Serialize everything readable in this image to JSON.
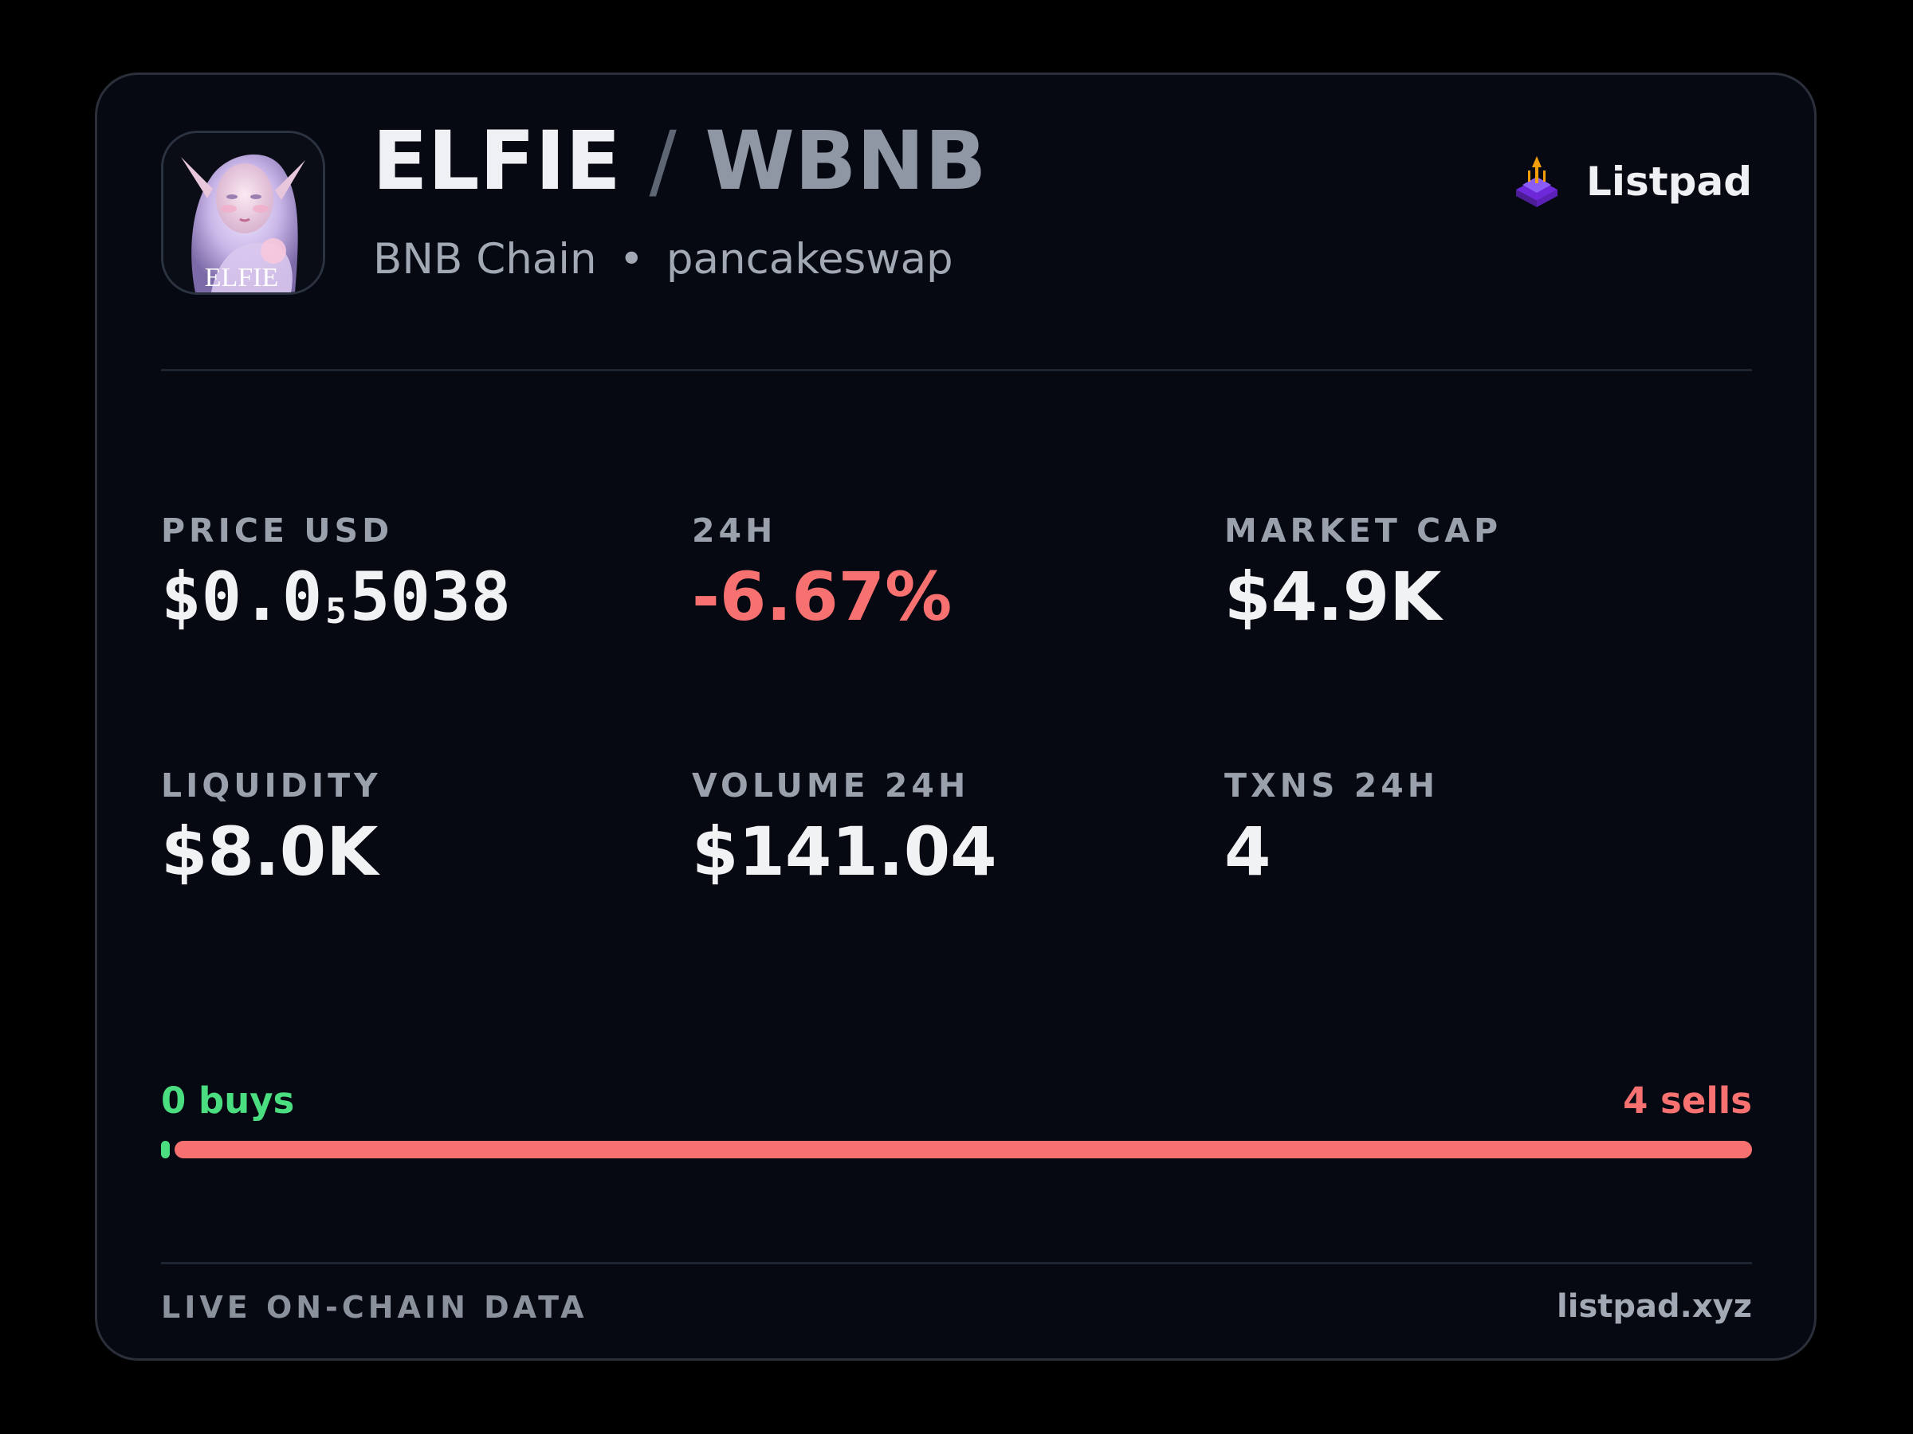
{
  "header": {
    "base_symbol": "ELFIE",
    "separator": "/",
    "quote_symbol": "WBNB",
    "chain": "BNB Chain",
    "bullet": "•",
    "dex": "pancakeswap",
    "logo_text": "ELFIE",
    "brand_name": "Listpad"
  },
  "stats": {
    "price": {
      "label": "PRICE USD",
      "prefix": "$0.0",
      "subscript": "5",
      "suffix": "5038"
    },
    "change_24h": {
      "label": "24H",
      "value": "-6.67%"
    },
    "market_cap": {
      "label": "MARKET CAP",
      "value": "$4.9K"
    },
    "liquidity": {
      "label": "LIQUIDITY",
      "value": "$8.0K"
    },
    "volume_24h": {
      "label": "VOLUME 24H",
      "value": "$141.04"
    },
    "txns_24h": {
      "label": "TXNS 24H",
      "value": "4"
    }
  },
  "trades": {
    "buys_label": "0 buys",
    "sells_label": "4 sells",
    "buys": 0,
    "sells": 4
  },
  "footer": {
    "left": "LIVE ON-CHAIN DATA",
    "right": "listpad.xyz"
  },
  "colors": {
    "background": "#060912",
    "positive": "#4ade80",
    "negative": "#f87171",
    "brand_accent": "#7c3aed"
  }
}
